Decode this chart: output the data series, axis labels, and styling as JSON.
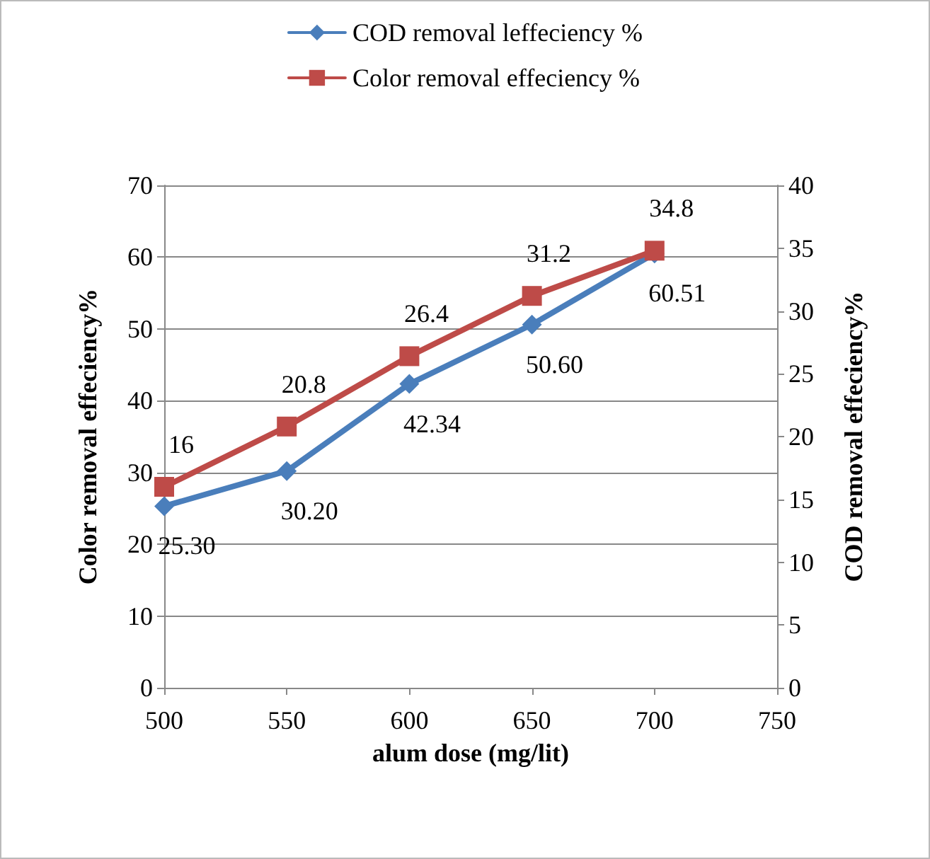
{
  "chart_data": {
    "type": "line",
    "xlabel": "alum dose (mg/lit)",
    "ylabel": "Color removal effeciency%",
    "y2label": "COD removal effeciency%",
    "x": [
      500,
      550,
      600,
      650,
      700
    ],
    "xlim": [
      500,
      750
    ],
    "xticks": [
      500,
      550,
      600,
      650,
      700,
      750
    ],
    "ylim": [
      0,
      70
    ],
    "yticks": [
      0,
      10,
      20,
      30,
      40,
      50,
      60,
      70
    ],
    "y2lim": [
      0,
      40
    ],
    "y2ticks": [
      0,
      5,
      10,
      15,
      20,
      25,
      30,
      35,
      40
    ],
    "grid": "y",
    "legend": "top",
    "line_style": "solid",
    "series": [
      {
        "name": "COD removal leffeciency %",
        "color": "#4a7ebb",
        "marker": "diamond",
        "axis": "y",
        "values": [
          25.3,
          30.2,
          42.34,
          50.6,
          60.51
        ],
        "value_labels": [
          "25.30",
          "30.20",
          "42.34",
          "50.60",
          "60.51"
        ]
      },
      {
        "name": "Color removal effeciency %",
        "color": "#be4b48",
        "marker": "square",
        "axis": "y2",
        "values": [
          16,
          20.8,
          26.4,
          31.2,
          34.8
        ],
        "value_labels": [
          "16",
          "20.8",
          "26.4",
          "31.2",
          "34.8"
        ]
      }
    ]
  }
}
